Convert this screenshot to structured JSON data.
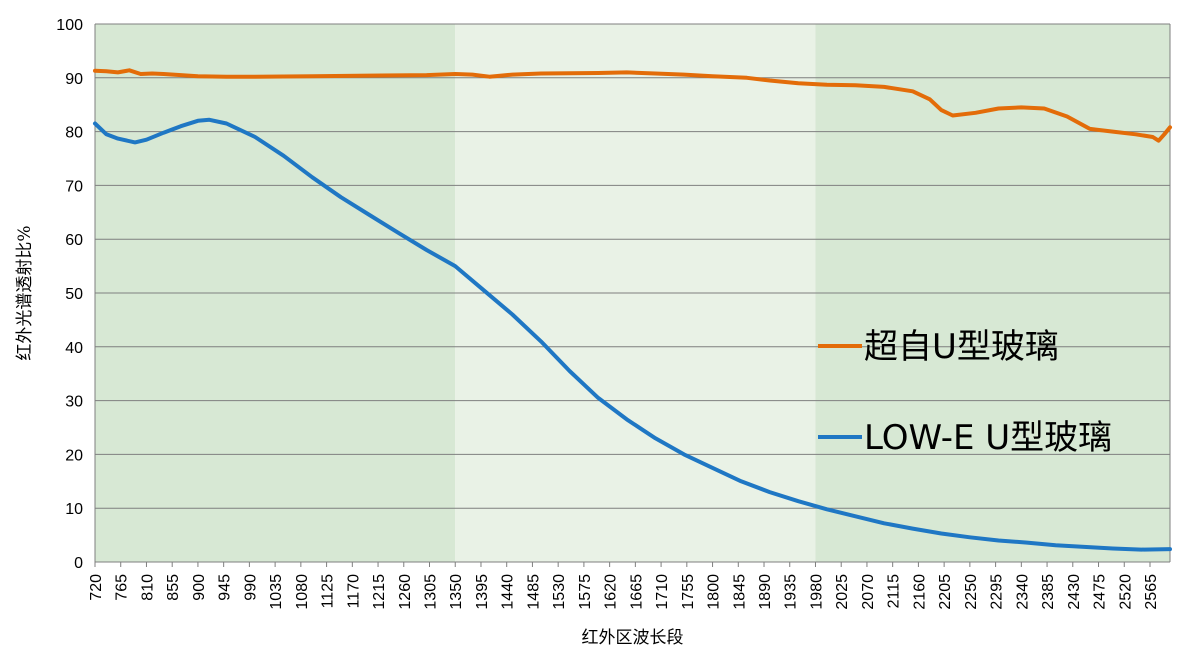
{
  "chart_data": {
    "type": "line",
    "title": "",
    "xlabel": "红外区波长段",
    "ylabel": "红外光谱透射比%",
    "ylim": [
      0,
      100
    ],
    "yticks": [
      0,
      10,
      20,
      30,
      40,
      50,
      60,
      70,
      80,
      90,
      100
    ],
    "xlim": [
      720,
      2600
    ],
    "xticks": [
      720,
      765,
      810,
      855,
      900,
      945,
      990,
      1035,
      1080,
      1125,
      1170,
      1215,
      1260,
      1305,
      1350,
      1395,
      1440,
      1485,
      1530,
      1575,
      1620,
      1665,
      1710,
      1755,
      1800,
      1845,
      1890,
      1935,
      1980,
      2025,
      2070,
      2115,
      2160,
      2205,
      2250,
      2295,
      2340,
      2385,
      2430,
      2475,
      2520,
      2565
    ],
    "grid": true,
    "legend_position": "right",
    "background_bands": [
      {
        "from": 720,
        "to": 1350,
        "color": "#d7e8d4"
      },
      {
        "from": 1350,
        "to": 1980,
        "color": "#e9f2e6"
      },
      {
        "from": 1980,
        "to": 2600,
        "color": "#d7e8d4"
      }
    ],
    "series": [
      {
        "name": "超自U型玻璃",
        "color": "#e36c09",
        "points": [
          [
            720,
            91.3
          ],
          [
            740,
            91.2
          ],
          [
            760,
            91.0
          ],
          [
            780,
            91.4
          ],
          [
            800,
            90.7
          ],
          [
            820,
            90.8
          ],
          [
            840,
            90.7
          ],
          [
            870,
            90.5
          ],
          [
            900,
            90.3
          ],
          [
            950,
            90.2
          ],
          [
            1000,
            90.2
          ],
          [
            1100,
            90.3
          ],
          [
            1200,
            90.4
          ],
          [
            1300,
            90.5
          ],
          [
            1350,
            90.7
          ],
          [
            1380,
            90.6
          ],
          [
            1410,
            90.2
          ],
          [
            1450,
            90.6
          ],
          [
            1500,
            90.8
          ],
          [
            1600,
            90.9
          ],
          [
            1650,
            91.0
          ],
          [
            1700,
            90.8
          ],
          [
            1750,
            90.6
          ],
          [
            1800,
            90.3
          ],
          [
            1860,
            90.0
          ],
          [
            1900,
            89.5
          ],
          [
            1950,
            89.0
          ],
          [
            2000,
            88.7
          ],
          [
            2050,
            88.6
          ],
          [
            2100,
            88.3
          ],
          [
            2150,
            87.5
          ],
          [
            2180,
            86.0
          ],
          [
            2200,
            84.0
          ],
          [
            2220,
            83.0
          ],
          [
            2260,
            83.5
          ],
          [
            2300,
            84.3
          ],
          [
            2340,
            84.5
          ],
          [
            2380,
            84.3
          ],
          [
            2420,
            82.8
          ],
          [
            2460,
            80.5
          ],
          [
            2500,
            80.0
          ],
          [
            2540,
            79.5
          ],
          [
            2570,
            79.0
          ],
          [
            2580,
            78.3
          ],
          [
            2590,
            79.5
          ],
          [
            2600,
            80.8
          ]
        ]
      },
      {
        "name": "LOW-E U型玻璃",
        "color": "#1f77c4",
        "points": [
          [
            720,
            81.5
          ],
          [
            740,
            79.5
          ],
          [
            760,
            78.7
          ],
          [
            790,
            78.0
          ],
          [
            810,
            78.5
          ],
          [
            840,
            79.8
          ],
          [
            870,
            81.0
          ],
          [
            900,
            82.0
          ],
          [
            920,
            82.2
          ],
          [
            950,
            81.5
          ],
          [
            1000,
            79.0
          ],
          [
            1050,
            75.5
          ],
          [
            1100,
            71.5
          ],
          [
            1150,
            67.8
          ],
          [
            1200,
            64.5
          ],
          [
            1250,
            61.2
          ],
          [
            1300,
            58.0
          ],
          [
            1350,
            55.0
          ],
          [
            1400,
            50.5
          ],
          [
            1450,
            46.0
          ],
          [
            1500,
            41.0
          ],
          [
            1550,
            35.5
          ],
          [
            1600,
            30.5
          ],
          [
            1650,
            26.5
          ],
          [
            1700,
            23.0
          ],
          [
            1750,
            20.0
          ],
          [
            1800,
            17.5
          ],
          [
            1850,
            15.0
          ],
          [
            1900,
            13.0
          ],
          [
            1950,
            11.3
          ],
          [
            2000,
            9.8
          ],
          [
            2050,
            8.5
          ],
          [
            2100,
            7.2
          ],
          [
            2150,
            6.2
          ],
          [
            2200,
            5.3
          ],
          [
            2250,
            4.6
          ],
          [
            2300,
            4.0
          ],
          [
            2350,
            3.6
          ],
          [
            2400,
            3.1
          ],
          [
            2450,
            2.8
          ],
          [
            2500,
            2.5
          ],
          [
            2550,
            2.3
          ],
          [
            2600,
            2.4
          ]
        ]
      }
    ]
  }
}
